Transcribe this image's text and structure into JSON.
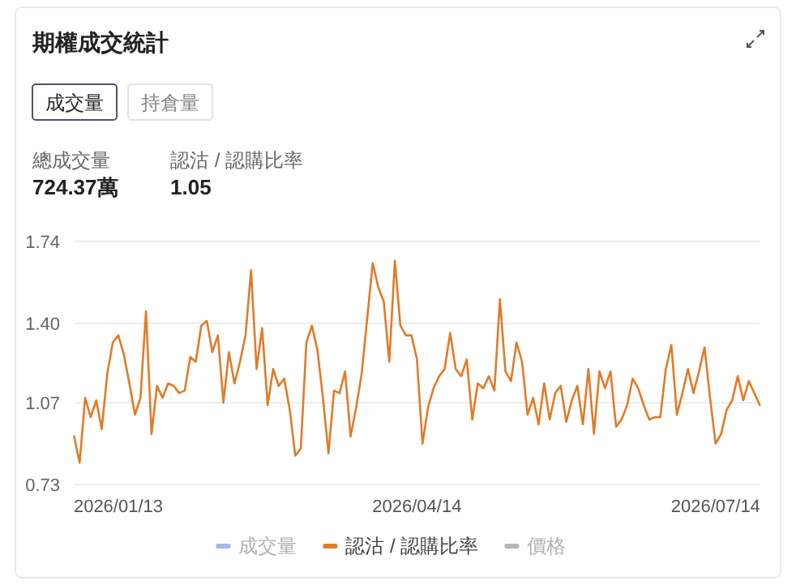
{
  "chart_data": {
    "type": "line",
    "title": "期權成交統計",
    "annotations": [
      "成交量",
      "持倉量",
      "總成交量",
      "724.37萬",
      "認沽 / 認購比率",
      "1.05"
    ],
    "categories": [
      null,
      null,
      null,
      null,
      null,
      null,
      null,
      null,
      "2026/01/13",
      null,
      null,
      null,
      null,
      null,
      null,
      null,
      null,
      null,
      null,
      null,
      null,
      null,
      null,
      null,
      null,
      null,
      null,
      null,
      null,
      null,
      null,
      null,
      null,
      null,
      null,
      null,
      null,
      null,
      null,
      null,
      null,
      null,
      null,
      null,
      null,
      null,
      null,
      null,
      null,
      null,
      null,
      null,
      null,
      null,
      null,
      null,
      null,
      null,
      null,
      null,
      null,
      null,
      "2026/04/14",
      null,
      null,
      null,
      null,
      null,
      null,
      null,
      null,
      null,
      null,
      null,
      null,
      null,
      null,
      null,
      null,
      null,
      null,
      null,
      null,
      null,
      null,
      null,
      null,
      null,
      null,
      null,
      null,
      null,
      null,
      null,
      null,
      null,
      null,
      null,
      null,
      null,
      null,
      null,
      null,
      null,
      null,
      null,
      null,
      null,
      null,
      null,
      null,
      null,
      null,
      null,
      null,
      null,
      "2026/07/14",
      null,
      null,
      null,
      null,
      null,
      null,
      null,
      null
    ],
    "series": [
      {
        "name": "成交量",
        "color": "#8fa8e8",
        "values": [
          null,
          null,
          null,
          null,
          null,
          null,
          null,
          null,
          null,
          null,
          null,
          null,
          null,
          null,
          null,
          null,
          null,
          null,
          null,
          null,
          null,
          null,
          null,
          null,
          null,
          null,
          null,
          null,
          null,
          null,
          null,
          null,
          null,
          null,
          null,
          null,
          null,
          null,
          null,
          null,
          null,
          null,
          null,
          null,
          null,
          null,
          null,
          null,
          null,
          null,
          null,
          null,
          null,
          null,
          null,
          null,
          null,
          null,
          null,
          null,
          null,
          null,
          null,
          null,
          null,
          null,
          null,
          null,
          null,
          null,
          null,
          null,
          null,
          null,
          null,
          null,
          null,
          null,
          null,
          null,
          null,
          null,
          null,
          null,
          null,
          null,
          null,
          null,
          null,
          null,
          null,
          null,
          null,
          null,
          null,
          null,
          null,
          null,
          null,
          null,
          null,
          null,
          null,
          null,
          null,
          null,
          null,
          null,
          null,
          null,
          null,
          null,
          null,
          null,
          null,
          null,
          null,
          null,
          null,
          null,
          null,
          null,
          null,
          null,
          null
        ]
      },
      {
        "name": "認沽 / 認購比率",
        "color": "#e07b2a",
        "values": [
          0.93,
          0.82,
          1.09,
          1.01,
          1.08,
          0.96,
          1.19,
          1.32,
          1.35,
          1.27,
          1.15,
          1.02,
          1.09,
          1.45,
          0.94,
          1.14,
          1.09,
          1.15,
          1.14,
          1.11,
          1.12,
          1.26,
          1.24,
          1.39,
          1.41,
          1.28,
          1.35,
          1.07,
          1.28,
          1.15,
          1.24,
          1.35,
          1.62,
          1.21,
          1.38,
          1.06,
          1.21,
          1.14,
          1.17,
          1.04,
          0.85,
          0.88,
          1.32,
          1.39,
          1.29,
          1.09,
          0.86,
          1.12,
          1.11,
          1.2,
          0.93,
          1.05,
          1.19,
          1.42,
          1.65,
          1.55,
          1.49,
          1.24,
          1.66,
          1.39,
          1.35,
          1.35,
          1.25,
          0.9,
          1.05,
          1.13,
          1.18,
          1.21,
          1.36,
          1.21,
          1.18,
          1.25,
          1.0,
          1.15,
          1.13,
          1.18,
          1.12,
          1.5,
          1.2,
          1.16,
          1.32,
          1.24,
          1.02,
          1.09,
          0.98,
          1.15,
          1.0,
          1.11,
          1.14,
          0.99,
          1.08,
          1.14,
          0.98,
          1.21,
          0.94,
          1.2,
          1.13,
          1.2,
          0.97,
          1.0,
          1.06,
          1.17,
          1.13,
          1.06,
          1.0,
          1.01,
          1.01,
          1.21,
          1.31,
          1.02,
          1.11,
          1.21,
          1.11,
          1.2,
          1.3,
          1.09,
          0.9,
          0.94,
          1.04,
          1.08,
          1.18,
          1.08,
          1.16,
          1.11,
          1.06
        ]
      },
      {
        "name": "價格",
        "color": "#a0a4ab",
        "values": [
          null,
          null,
          null,
          null,
          null,
          null,
          null,
          null,
          null,
          null,
          null,
          null,
          null,
          null,
          null,
          null,
          null,
          null,
          null,
          null,
          null,
          null,
          null,
          null,
          null,
          null,
          null,
          null,
          null,
          null,
          null,
          null,
          null,
          null,
          null,
          null,
          null,
          null,
          null,
          null,
          null,
          null,
          null,
          null,
          null,
          null,
          null,
          null,
          null,
          null,
          null,
          null,
          null,
          null,
          null,
          null,
          null,
          null,
          null,
          null,
          null,
          null,
          null,
          null,
          null,
          null,
          null,
          null,
          null,
          null,
          null,
          null,
          null,
          null,
          null,
          null,
          null,
          null,
          null,
          null,
          null,
          null,
          null,
          null,
          null,
          null,
          null,
          null,
          null,
          null,
          null,
          null,
          null,
          null,
          null,
          null,
          null,
          null,
          null,
          null,
          null,
          null,
          null,
          null,
          null,
          null,
          null,
          null,
          null,
          null,
          null,
          null,
          null,
          null,
          null,
          null,
          null,
          null,
          null,
          null,
          null,
          null,
          null,
          null,
          null
        ]
      }
    ],
    "ylim": [
      0.73,
      1.74
    ],
    "yticks": [
      0.73,
      1.07,
      {
        "value": 1.4,
        "label": "1.40"
      },
      1.74
    ],
    "grid": "y",
    "legend": "bottom"
  }
}
